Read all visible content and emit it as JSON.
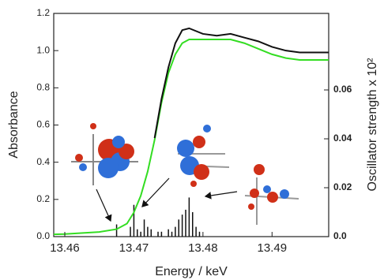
{
  "chart_data": {
    "type": "line",
    "x_label": "Energy / keV",
    "y_label": "Absorbance",
    "y2_label": "Oscillator strength x 10²",
    "xlim": [
      13.4584,
      13.4982
    ],
    "ylim": [
      0,
      1.2
    ],
    "y2lim": [
      0,
      0.0913
    ],
    "xticks": [
      13.46,
      13.47,
      13.48,
      13.49
    ],
    "yticks": [
      {
        "value": 0,
        "label": "0.0"
      },
      0.2,
      0.4,
      0.6,
      0.8,
      {
        "value": 1,
        "label": "1.0"
      },
      1.2
    ],
    "y2ticks": [
      {
        "value": 0,
        "label": "0.0"
      },
      0.02,
      0.04,
      0.06
    ],
    "series": [
      {
        "type": "line",
        "color": "#33dd22",
        "x": [
          13.4584,
          13.46,
          13.465,
          13.4675,
          13.469,
          13.47,
          13.471,
          13.472,
          13.473,
          13.474,
          13.475,
          13.476,
          13.477,
          13.478,
          13.48,
          13.482,
          13.484,
          13.486,
          13.488,
          13.49,
          13.492,
          13.494,
          13.4982
        ],
        "values": [
          0.012,
          0.014,
          0.025,
          0.04,
          0.07,
          0.13,
          0.22,
          0.35,
          0.52,
          0.72,
          0.88,
          0.98,
          1.04,
          1.06,
          1.06,
          1.06,
          1.06,
          1.04,
          1.01,
          0.98,
          0.96,
          0.95,
          0.95
        ]
      },
      {
        "type": "line",
        "color": "#111111",
        "x": [
          13.4584,
          13.46,
          13.465,
          13.4675,
          13.469,
          13.47,
          13.471,
          13.472,
          13.473,
          13.474,
          13.475,
          13.476,
          13.477,
          13.478,
          13.48,
          13.482,
          13.484,
          13.486,
          13.488,
          13.49,
          13.492,
          13.494,
          13.4982
        ],
        "values": [
          null,
          null,
          null,
          null,
          null,
          null,
          null,
          null,
          0.53,
          0.74,
          0.91,
          1.04,
          1.11,
          1.12,
          1.09,
          1.08,
          1.09,
          1.07,
          1.05,
          1.02,
          1.0,
          0.99,
          0.99
        ]
      },
      {
        "type": "stick",
        "axis": "y2",
        "color": "#111111",
        "x": [
          13.4675,
          13.4695,
          13.47,
          13.4705,
          13.471,
          13.4715,
          13.472,
          13.4725,
          13.4735,
          13.474,
          13.475,
          13.4755,
          13.476,
          13.4765,
          13.477,
          13.4775,
          13.478,
          13.4785,
          13.479,
          13.4795
        ],
        "values": [
          0.005,
          0.004,
          0.013,
          0.003,
          0.002,
          0.007,
          0.004,
          0.003,
          0.002,
          0.002,
          0.003,
          0.002,
          0.004,
          0.007,
          0.009,
          0.011,
          0.016,
          0.01,
          0.004,
          0.002
        ]
      }
    ]
  }
}
